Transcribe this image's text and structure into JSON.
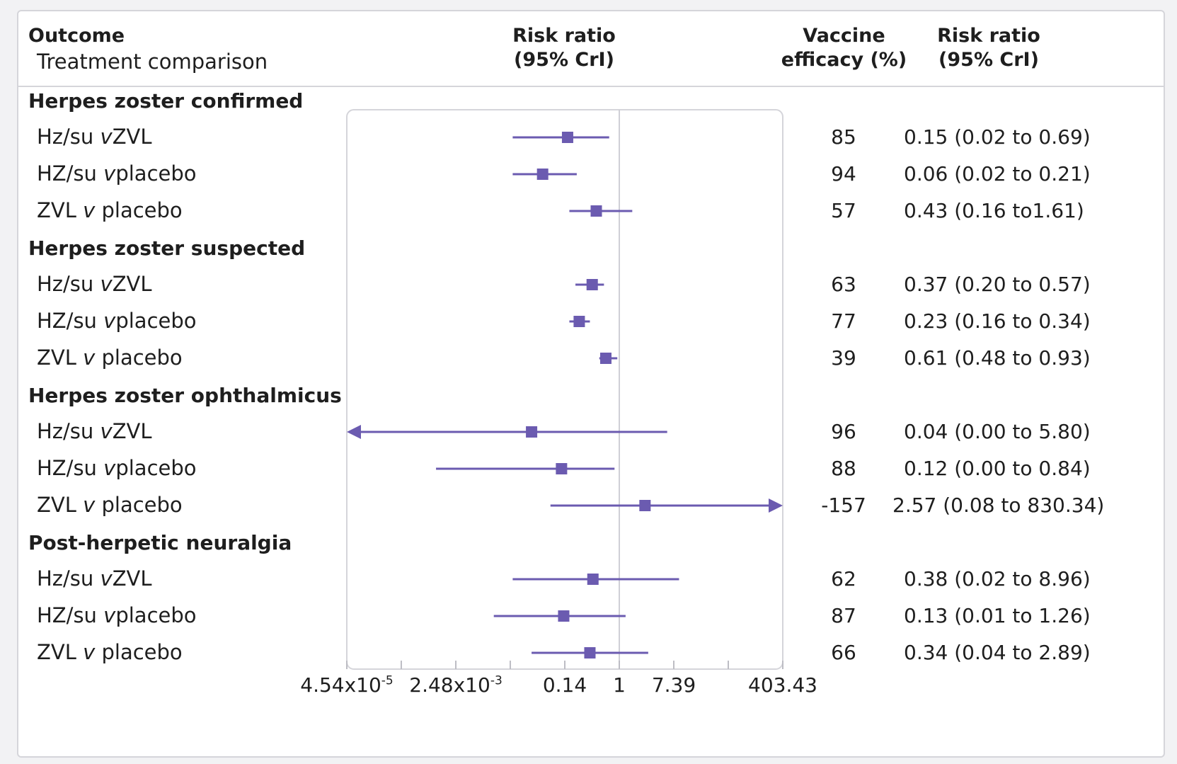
{
  "header": {
    "outcome": "Outcome",
    "treatment_comparison": "Treatment comparison",
    "risk_ratio_title_line1": "Risk ratio",
    "risk_ratio_title_line2": "(95% CrI)",
    "vaccine_efficacy_line1": "Vaccine",
    "vaccine_efficacy_line2": "efficacy (%)",
    "risk_ratio_col_line1": "Risk ratio",
    "risk_ratio_col_line2": "(95% CrI)"
  },
  "groups": [
    {
      "title": "Herpes zoster confirmed",
      "rows": [
        {
          "label_a": "Hz/su ",
          "v": "v",
          "label_b": "ZVL",
          "efficacy": "85",
          "rr_text": "0.15 (0.02 to 0.69)"
        },
        {
          "label_a": "HZ/su ",
          "v": "v",
          "label_b": "placebo",
          "efficacy": "94",
          "rr_text": "0.06 (0.02 to 0.21)"
        },
        {
          "label_a": "ZVL ",
          "v": "v",
          "label_b": " placebo",
          "efficacy": "57",
          "rr_text": "0.43 (0.16 to1.61)"
        }
      ]
    },
    {
      "title": "Herpes zoster suspected",
      "rows": [
        {
          "label_a": "Hz/su ",
          "v": "v",
          "label_b": "ZVL",
          "efficacy": "63",
          "rr_text": "0.37 (0.20 to 0.57)"
        },
        {
          "label_a": "HZ/su ",
          "v": "v",
          "label_b": "placebo",
          "efficacy": "77",
          "rr_text": "0.23 (0.16 to 0.34)"
        },
        {
          "label_a": "ZVL ",
          "v": "v",
          "label_b": " placebo",
          "efficacy": "39",
          "rr_text": "0.61 (0.48 to 0.93)"
        }
      ]
    },
    {
      "title": "Herpes zoster ophthalmicus",
      "rows": [
        {
          "label_a": "Hz/su ",
          "v": "v",
          "label_b": "ZVL",
          "efficacy": "96",
          "rr_text": "0.04 (0.00 to 5.80)"
        },
        {
          "label_a": "HZ/su ",
          "v": "v",
          "label_b": "placebo",
          "efficacy": "88",
          "rr_text": "0.12 (0.00 to 0.84)"
        },
        {
          "label_a": "ZVL ",
          "v": "v",
          "label_b": " placebo",
          "efficacy": "-157",
          "rr_text": "2.57 (0.08 to 830.34)"
        }
      ]
    },
    {
      "title": "Post-herpetic neuralgia",
      "rows": [
        {
          "label_a": "Hz/su ",
          "v": "v",
          "label_b": "ZVL",
          "efficacy": "62",
          "rr_text": "0.38 (0.02 to 8.96)"
        },
        {
          "label_a": "HZ/su ",
          "v": "v",
          "label_b": "placebo",
          "efficacy": "87",
          "rr_text": "0.13 (0.01 to 1.26)"
        },
        {
          "label_a": "ZVL ",
          "v": "v",
          "label_b": " placebo",
          "efficacy": "66",
          "rr_text": "0.34 (0.04 to 2.89)"
        }
      ]
    }
  ],
  "colors": {
    "marker": "#6b5bb0",
    "null_line": "#cfcfd6",
    "panel_border": "#d5d5da"
  },
  "chart_data": {
    "type": "forest",
    "x_scale": "log",
    "xlim": [
      4.54e-05,
      403.43
    ],
    "null_value": 1,
    "tick_values": [
      4.54e-05,
      0.000335,
      0.00248,
      0.0183,
      0.1353,
      1,
      7.389,
      54.6,
      403.43
    ],
    "tick_labels": [
      {
        "base": "4.54x10",
        "exp": "-5",
        "value": 4.54e-05
      },
      {
        "base": "2.48x10",
        "exp": "-3",
        "value": 0.00248
      },
      {
        "base": "0.14",
        "exp": "",
        "value": 0.1353
      },
      {
        "base": "1",
        "exp": "",
        "value": 1
      },
      {
        "base": "7.39",
        "exp": "",
        "value": 7.389
      },
      {
        "base": "403.43",
        "exp": "",
        "value": 403.43
      }
    ],
    "series": [
      {
        "outcome": "Herpes zoster confirmed",
        "comparison": "Hz/su v ZVL",
        "rr": 0.15,
        "lower": 0.02,
        "upper": 0.69
      },
      {
        "outcome": "Herpes zoster confirmed",
        "comparison": "HZ/su v placebo",
        "rr": 0.06,
        "lower": 0.02,
        "upper": 0.21
      },
      {
        "outcome": "Herpes zoster confirmed",
        "comparison": "ZVL v placebo",
        "rr": 0.43,
        "lower": 0.16,
        "upper": 1.61
      },
      {
        "outcome": "Herpes zoster suspected",
        "comparison": "Hz/su v ZVL",
        "rr": 0.37,
        "lower": 0.2,
        "upper": 0.57
      },
      {
        "outcome": "Herpes zoster suspected",
        "comparison": "HZ/su v placebo",
        "rr": 0.23,
        "lower": 0.16,
        "upper": 0.34
      },
      {
        "outcome": "Herpes zoster suspected",
        "comparison": "ZVL v placebo",
        "rr": 0.61,
        "lower": 0.48,
        "upper": 0.93
      },
      {
        "outcome": "Herpes zoster ophthalmicus",
        "comparison": "Hz/su v ZVL",
        "rr": 0.04,
        "lower": 0.0,
        "upper": 5.8,
        "lower_truncated": true
      },
      {
        "outcome": "Herpes zoster ophthalmicus",
        "comparison": "HZ/su v placebo",
        "rr": 0.12,
        "lower": 0.0,
        "upper": 0.84
      },
      {
        "outcome": "Herpes zoster ophthalmicus",
        "comparison": "ZVL v placebo",
        "rr": 2.57,
        "lower": 0.08,
        "upper": 830.34,
        "upper_truncated": true
      },
      {
        "outcome": "Post-herpetic neuralgia",
        "comparison": "Hz/su v ZVL",
        "rr": 0.38,
        "lower": 0.02,
        "upper": 8.96
      },
      {
        "outcome": "Post-herpetic neuralgia",
        "comparison": "HZ/su v placebo",
        "rr": 0.13,
        "lower": 0.01,
        "upper": 1.26
      },
      {
        "outcome": "Post-herpetic neuralgia",
        "comparison": "ZVL v placebo",
        "rr": 0.34,
        "lower": 0.04,
        "upper": 2.89
      }
    ]
  }
}
